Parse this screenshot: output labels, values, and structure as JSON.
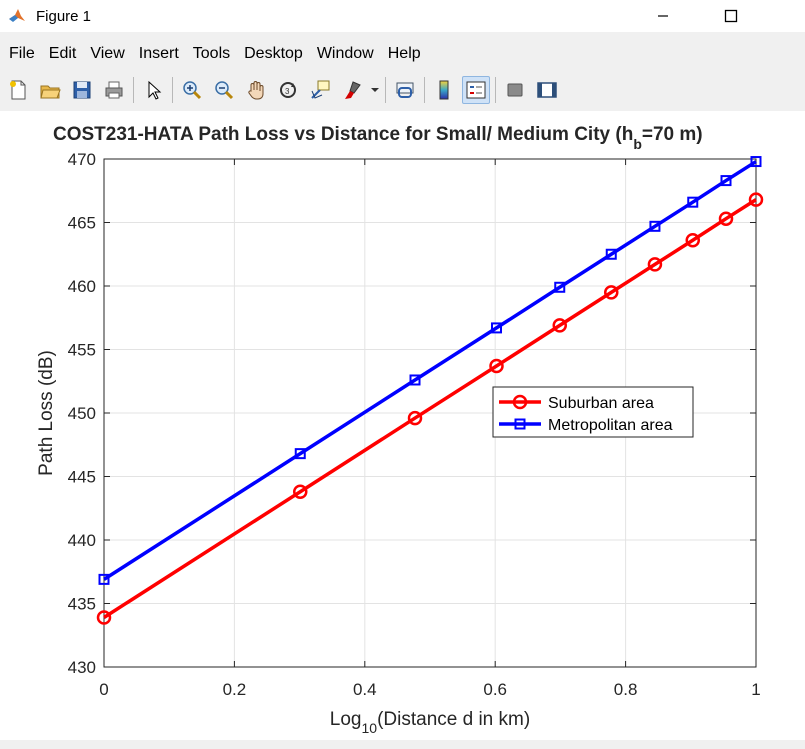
{
  "window": {
    "title": "Figure 1"
  },
  "menu": [
    "File",
    "Edit",
    "View",
    "Insert",
    "Tools",
    "Desktop",
    "Window",
    "Help"
  ],
  "toolbar": {
    "icons": [
      "new-figure-icon",
      "open-file-icon",
      "save-icon",
      "print-icon",
      "pointer-icon",
      "zoom-in-icon",
      "zoom-out-icon",
      "pan-hand-icon",
      "rotate-3d-icon",
      "data-cursor-icon",
      "brush-icon",
      "link-plot-icon",
      "colorbar-icon",
      "legend-icon",
      "hide-plot-tools-icon",
      "show-plot-tools-icon"
    ],
    "active": "legend-icon"
  },
  "colors": {
    "suburban": "#ff0000",
    "metropolitan": "#0000ff",
    "grid": "#e3e3e3"
  },
  "chart_data": {
    "type": "line",
    "title_main": "COST231-HATA Path Loss vs Distance for Small/ Medium City (h",
    "title_sub": "b",
    "title_tail": "=70 m)",
    "xlabel_main": "Log",
    "xlabel_sub": "10",
    "xlabel_tail": "(Distance d in km)",
    "ylabel": "Path Loss (dB)",
    "xlim": [
      0,
      1
    ],
    "ylim": [
      430,
      470
    ],
    "xticks": [
      0,
      0.2,
      0.4,
      0.6,
      0.8,
      1
    ],
    "xtick_labels": [
      "0",
      "0.2",
      "0.4",
      "0.6",
      "0.8",
      "1"
    ],
    "yticks": [
      430,
      435,
      440,
      445,
      450,
      455,
      460,
      465,
      470
    ],
    "ytick_labels": [
      "430",
      "435",
      "440",
      "445",
      "450",
      "455",
      "460",
      "465",
      "470"
    ],
    "grid": true,
    "legend_location": "center-right",
    "x": [
      0,
      0.301,
      0.477,
      0.602,
      0.699,
      0.778,
      0.845,
      0.903,
      0.954,
      1.0
    ],
    "series": [
      {
        "name": "Suburban area",
        "marker": "circle",
        "color": "#ff0000",
        "values": [
          433.9,
          443.8,
          449.6,
          453.7,
          456.9,
          459.5,
          461.7,
          463.6,
          465.3,
          466.8
        ]
      },
      {
        "name": "Metropolitan area",
        "marker": "square",
        "color": "#0000ff",
        "values": [
          436.9,
          446.8,
          452.6,
          456.7,
          459.9,
          462.5,
          464.7,
          466.6,
          468.3,
          469.8
        ]
      }
    ]
  }
}
